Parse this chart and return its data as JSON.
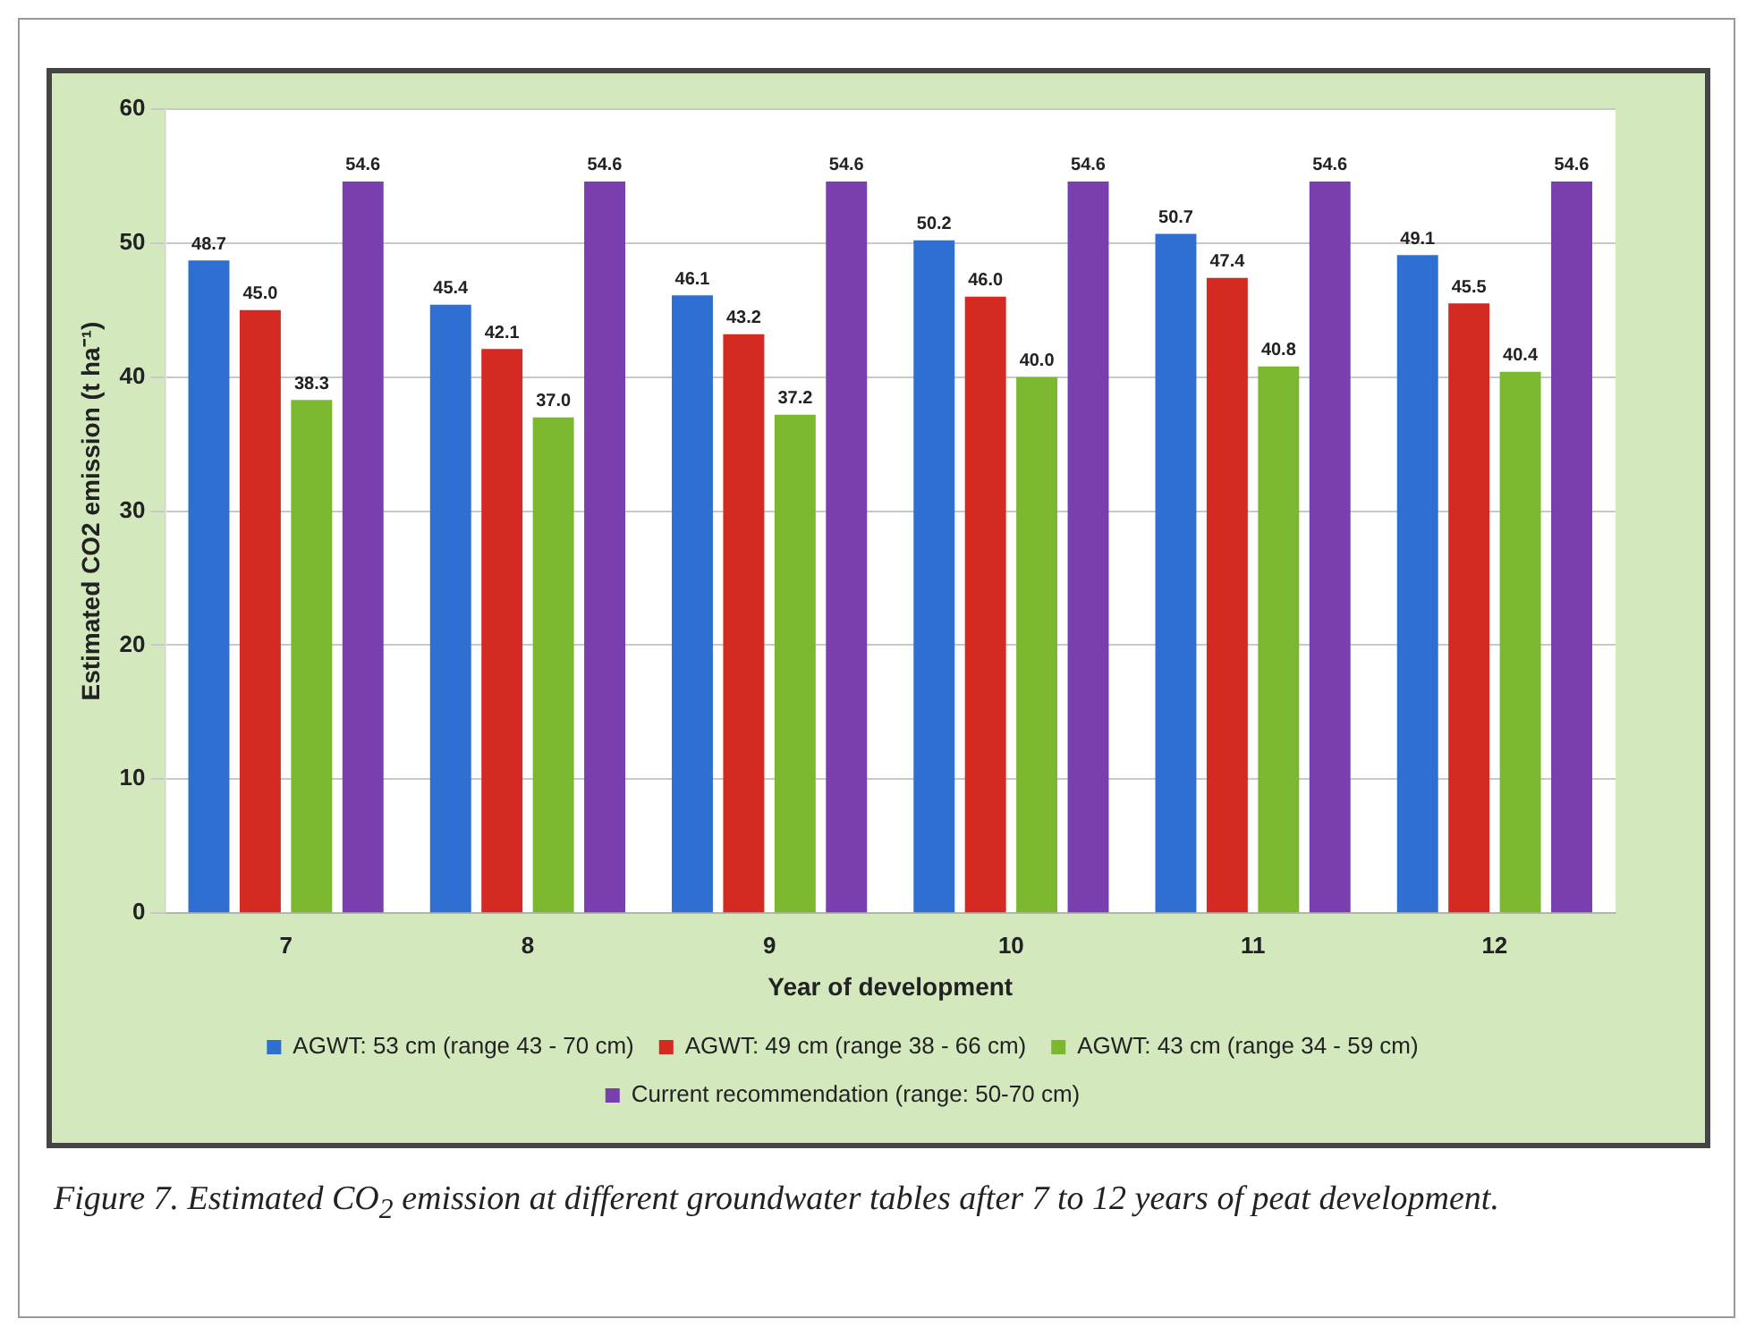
{
  "chart_data": {
    "type": "bar",
    "ylabel": "Estimated CO2 emission (t ha⁻¹)",
    "xlabel": "Year of development",
    "categories": [
      "7",
      "8",
      "9",
      "10",
      "11",
      "12"
    ],
    "series": [
      {
        "name": "AGWT: 53 cm (range 43 - 70 cm)",
        "color": "#2e6fd1",
        "values": [
          48.7,
          45.4,
          46.1,
          50.2,
          50.7,
          49.1
        ],
        "value_labels": [
          "48.7",
          "45.4",
          "46.1",
          "50.2",
          "50.7",
          "49.1"
        ]
      },
      {
        "name": "AGWT: 49 cm (range 38 - 66 cm)",
        "color": "#d42a22",
        "values": [
          45.0,
          42.1,
          43.2,
          46.0,
          47.4,
          45.5
        ],
        "value_labels": [
          "45.0",
          "42.1",
          "43.2",
          "46.0",
          "47.4",
          "45.5"
        ]
      },
      {
        "name": "AGWT: 43 cm (range 34 - 59 cm)",
        "color": "#7cb82f",
        "values": [
          38.3,
          37.0,
          37.2,
          40.0,
          40.8,
          40.4
        ],
        "value_labels": [
          "38.3",
          "37.0",
          "37.2",
          "40.0",
          "40.8",
          "40.4"
        ]
      },
      {
        "name": "Current recommendation (range: 50-70 cm)",
        "color": "#7a3fae",
        "values": [
          54.6,
          54.6,
          54.6,
          54.6,
          54.6,
          54.6
        ],
        "value_labels": [
          "54.6",
          "54.6",
          "54.6",
          "54.6",
          "54.6",
          "54.6"
        ]
      }
    ],
    "ylim": [
      0,
      60
    ],
    "yticks": [
      0,
      10,
      20,
      30,
      40,
      50,
      60
    ],
    "grid": "y",
    "legend": "bottom",
    "annotations": [
      "Figure 7.  Estimated CO$_{2}$ emission at different groundwater tables after 7 to 12 years of peat development."
    ]
  }
}
